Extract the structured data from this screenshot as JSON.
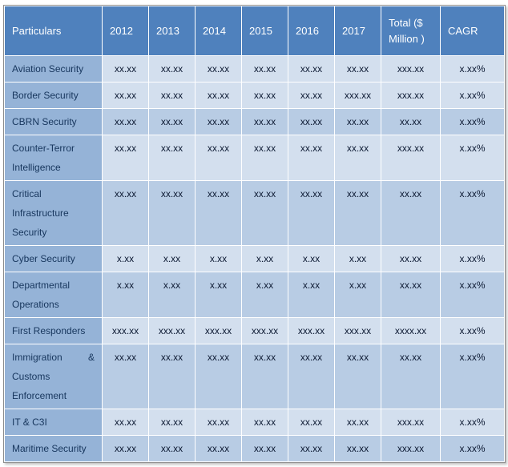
{
  "colors": {
    "header-bg": "#4f81bd",
    "header-fg": "#ffffff",
    "label-bg": "#95b3d7",
    "label-fg": "#17365d",
    "row-light": "#d3dfee",
    "row-dark": "#b8cce4",
    "value-fg": "#0d1a33",
    "grid": "#ffffff",
    "frame": "#8c8c8c"
  },
  "table": {
    "columns": [
      "Particulars",
      "2012",
      "2013",
      "2014",
      "2015",
      "2016",
      "2017",
      "Total ($ Million )",
      "CAGR"
    ],
    "rows": [
      {
        "label": "Aviation Security",
        "shade": "light",
        "values": [
          "xx.xx",
          "xx.xx",
          "xx.xx",
          "xx.xx",
          "xx.xx",
          "xx.xx",
          "xxx.xx",
          "x.xx%"
        ]
      },
      {
        "label": "Border Security",
        "shade": "light",
        "values": [
          "xx.xx",
          "xx.xx",
          "xx.xx",
          "xx.xx",
          "xx.xx",
          "xxx.xx",
          "xxx.xx",
          "x.xx%"
        ]
      },
      {
        "label": "CBRN Security",
        "shade": "dark",
        "values": [
          "xx.xx",
          "xx.xx",
          "xx.xx",
          "xx.xx",
          "xx.xx",
          "xx.xx",
          "xx.xx",
          "x.xx%"
        ]
      },
      {
        "label": "Counter-Terror Intelligence",
        "shade": "light",
        "values": [
          "xx.xx",
          "xx.xx",
          "xx.xx",
          "xx.xx",
          "xx.xx",
          "xx.xx",
          "xxx.xx",
          "x.xx%"
        ]
      },
      {
        "label": "Critical Infrastructure Security",
        "shade": "dark",
        "values": [
          "xx.xx",
          "xx.xx",
          "xx.xx",
          "xx.xx",
          "xx.xx",
          "xx.xx",
          "xx.xx",
          "x.xx%"
        ]
      },
      {
        "label": "Cyber Security",
        "shade": "light",
        "values": [
          "x.xx",
          "x.xx",
          "x.xx",
          "x.xx",
          "x.xx",
          "x.xx",
          "xx.xx",
          "x.xx%"
        ]
      },
      {
        "label": "Departmental Operations",
        "shade": "dark",
        "values": [
          "x.xx",
          "x.xx",
          "x.xx",
          "x.xx",
          "x.xx",
          "x.xx",
          "xx.xx",
          "x.xx%"
        ]
      },
      {
        "label": "First Responders",
        "shade": "light",
        "values": [
          "xxx.xx",
          "xxx.xx",
          "xxx.xx",
          "xxx.xx",
          "xxx.xx",
          "xxx.xx",
          "xxxx.xx",
          "x.xx%"
        ]
      },
      {
        "label": "Immigration & Customs Enforcement",
        "shade": "dark",
        "values": [
          "xx.xx",
          "xx.xx",
          "xx.xx",
          "xx.xx",
          "xx.xx",
          "xx.xx",
          "xx.xx",
          "x.xx%"
        ]
      },
      {
        "label": "IT & C3I",
        "shade": "light",
        "values": [
          "xx.xx",
          "xx.xx",
          "xx.xx",
          "xx.xx",
          "xx.xx",
          "xx.xx",
          "xxx.xx",
          "x.xx%"
        ]
      },
      {
        "label": "Maritime Security",
        "shade": "dark",
        "values": [
          "xx.xx",
          "xx.xx",
          "xx.xx",
          "xx.xx",
          "xx.xx",
          "xx.xx",
          "xxx.xx",
          "x.xx%"
        ]
      }
    ]
  }
}
